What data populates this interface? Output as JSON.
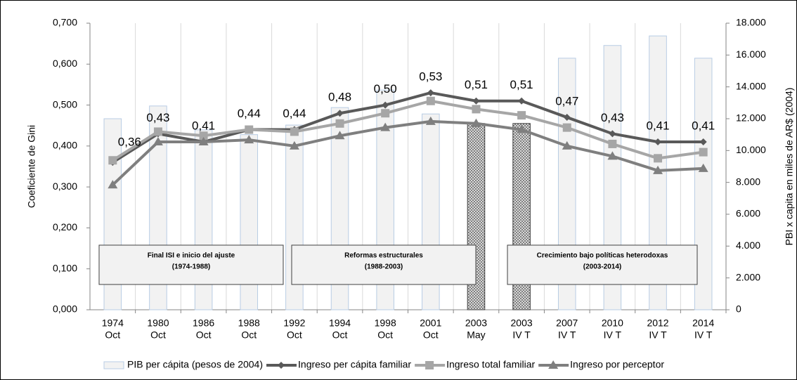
{
  "chart_data": {
    "type": "bar-line",
    "categories": [
      [
        "1974",
        "Oct"
      ],
      [
        "1980",
        "Oct"
      ],
      [
        "1986",
        "Oct"
      ],
      [
        "1988",
        "Oct"
      ],
      [
        "1992",
        "Oct"
      ],
      [
        "1994",
        "Oct"
      ],
      [
        "1998",
        "Oct"
      ],
      [
        "2001",
        "Oct"
      ],
      [
        "2003",
        "May"
      ],
      [
        "2003",
        "IV T"
      ],
      [
        "2007",
        "IV T"
      ],
      [
        "2010",
        "IV T"
      ],
      [
        "2012",
        "IV T"
      ],
      [
        "2014",
        "IV T"
      ]
    ],
    "y_label": "Coeficiente de Gini",
    "y2_label": "PBI x capita en miles de AR$ (2004)",
    "ylim": [
      0,
      0.7
    ],
    "yticks": [
      {
        "value": 0,
        "label": "0,000"
      },
      {
        "value": 0.1,
        "label": "0,100"
      },
      {
        "value": 0.2,
        "label": "0,200"
      },
      {
        "value": 0.3,
        "label": "0,300"
      },
      {
        "value": 0.4,
        "label": "0,400"
      },
      {
        "value": 0.5,
        "label": "0,500"
      },
      {
        "value": 0.6,
        "label": "0,600"
      },
      {
        "value": 0.7,
        "label": "0,700"
      }
    ],
    "y2lim": [
      0,
      18000
    ],
    "y2ticks": [
      0,
      {
        "value": 2000,
        "label": "2.000"
      },
      {
        "value": 4000,
        "label": "4.000"
      },
      {
        "value": 6000,
        "label": "6.000"
      },
      {
        "value": 8000,
        "label": "8.000"
      },
      {
        "value": 10000,
        "label": "10.000"
      },
      {
        "value": 12000,
        "label": "12.000"
      },
      {
        "value": 14000,
        "label": "14.000"
      },
      {
        "value": 16000,
        "label": "16.000"
      },
      {
        "value": 18000,
        "label": "18.000"
      }
    ],
    "series": [
      {
        "name": "PIB per cápita (pesos de 2004)",
        "kind": "bar",
        "axis": "y2",
        "color": "#f2f2f2",
        "edge": "#b8cce4",
        "styles": [
          "solid",
          "solid",
          "solid",
          "solid",
          "solid",
          "solid",
          "solid",
          "solid",
          "dotted",
          "dotted",
          "solid",
          "solid",
          "solid",
          "solid"
        ],
        "values": [
          12000,
          12800,
          11300,
          11000,
          11600,
          12700,
          13800,
          12300,
          11700,
          11700,
          15800,
          16600,
          17200,
          15800
        ]
      },
      {
        "name": "Ingreso per cápita familiar",
        "kind": "line",
        "marker": "diamond",
        "color": "#595959",
        "values": [
          0.36,
          0.43,
          0.41,
          0.44,
          0.44,
          0.48,
          0.5,
          0.53,
          0.51,
          0.51,
          0.47,
          0.43,
          0.41,
          0.41
        ],
        "value_labels": [
          "0,36",
          "0,43",
          "0,41",
          "0,44",
          "0,44",
          "0,48",
          "0,50",
          "0,53",
          "0,51",
          "0,51",
          "0,47",
          "0,43",
          "0,41",
          "0,41"
        ]
      },
      {
        "name": "Ingreso total familiar",
        "kind": "line",
        "marker": "square",
        "color": "#a6a6a6",
        "values": [
          0.365,
          0.435,
          0.425,
          0.44,
          0.435,
          0.455,
          0.48,
          0.51,
          0.49,
          0.475,
          0.445,
          0.405,
          0.37,
          0.385
        ]
      },
      {
        "name": "Ingreso por perceptor",
        "kind": "line",
        "marker": "triangle",
        "color": "#7f7f7f",
        "values": [
          0.305,
          0.41,
          0.41,
          0.415,
          0.4,
          0.425,
          0.445,
          0.46,
          0.455,
          0.44,
          0.4,
          0.375,
          0.34,
          0.345
        ]
      }
    ],
    "annotations": [
      {
        "title": "Final ISI e inicio del ajuste",
        "period": "(1974-1988)"
      },
      {
        "title": "Reformas estructurales",
        "period": "(1988-2003)"
      },
      {
        "title": "Crecimiento bajo políticas heterodoxas",
        "period": "(2003-2014)"
      }
    ],
    "grid": true
  }
}
